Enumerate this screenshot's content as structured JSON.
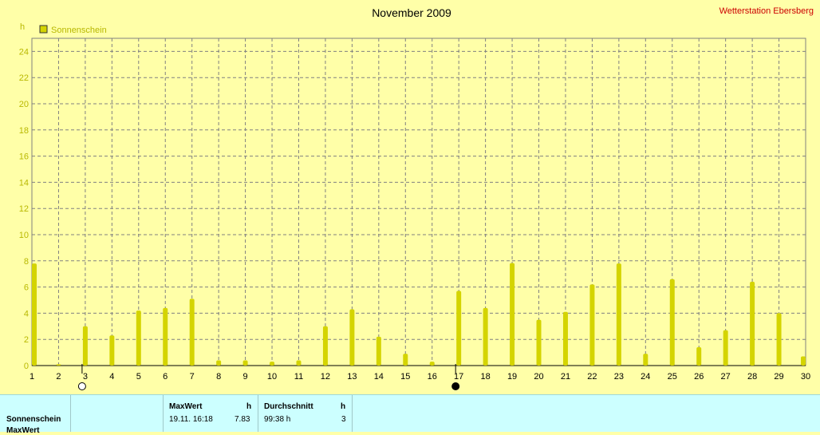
{
  "header": {
    "title": "November 2009",
    "station": "Wetterstation Ebersberg"
  },
  "legend": {
    "label": "Sonnenschein",
    "color": "#d4d400"
  },
  "colors": {
    "bar": "#d4d400",
    "grid": "#808080",
    "axis_text": "#b8b800",
    "background": "#ffffa8",
    "stats_background": "#ccffff"
  },
  "chart_data": {
    "type": "bar",
    "title": "November 2009",
    "ylabel": "h",
    "ylim": [
      0,
      25
    ],
    "yticks": [
      0,
      2,
      4,
      6,
      8,
      10,
      12,
      14,
      16,
      18,
      20,
      22,
      24
    ],
    "legend_position": "top-left",
    "grid": true,
    "x": [
      1,
      2,
      3,
      4,
      5,
      6,
      7,
      8,
      9,
      10,
      11,
      12,
      13,
      14,
      15,
      16,
      17,
      18,
      19,
      20,
      21,
      22,
      23,
      24,
      25,
      26,
      27,
      28,
      29,
      30
    ],
    "series": [
      {
        "name": "Sonnenschein",
        "values": [
          7.8,
          0.1,
          3.0,
          2.3,
          4.2,
          4.4,
          5.1,
          0.4,
          0.4,
          0.3,
          0.4,
          3.0,
          4.3,
          2.2,
          0.9,
          0.3,
          5.7,
          4.4,
          7.83,
          3.5,
          4.1,
          6.2,
          7.8,
          0.9,
          6.6,
          1.4,
          2.7,
          6.4,
          4.0,
          0.7
        ]
      }
    ],
    "moon_markers": [
      {
        "day": 3,
        "phase": "full-moon-icon"
      },
      {
        "day": 17,
        "phase": "new-moon-icon"
      }
    ]
  },
  "stats": {
    "row_label": "Sonnenschein",
    "row_label_2": "MaxWert",
    "max_header": "MaxWert",
    "max_unit": "h",
    "max_time": "19.11.  16:18",
    "max_value": "7.83",
    "avg_header": "Durchschnitt",
    "avg_unit": "h",
    "avg_value": "99:38 h",
    "avg_count": "3"
  }
}
